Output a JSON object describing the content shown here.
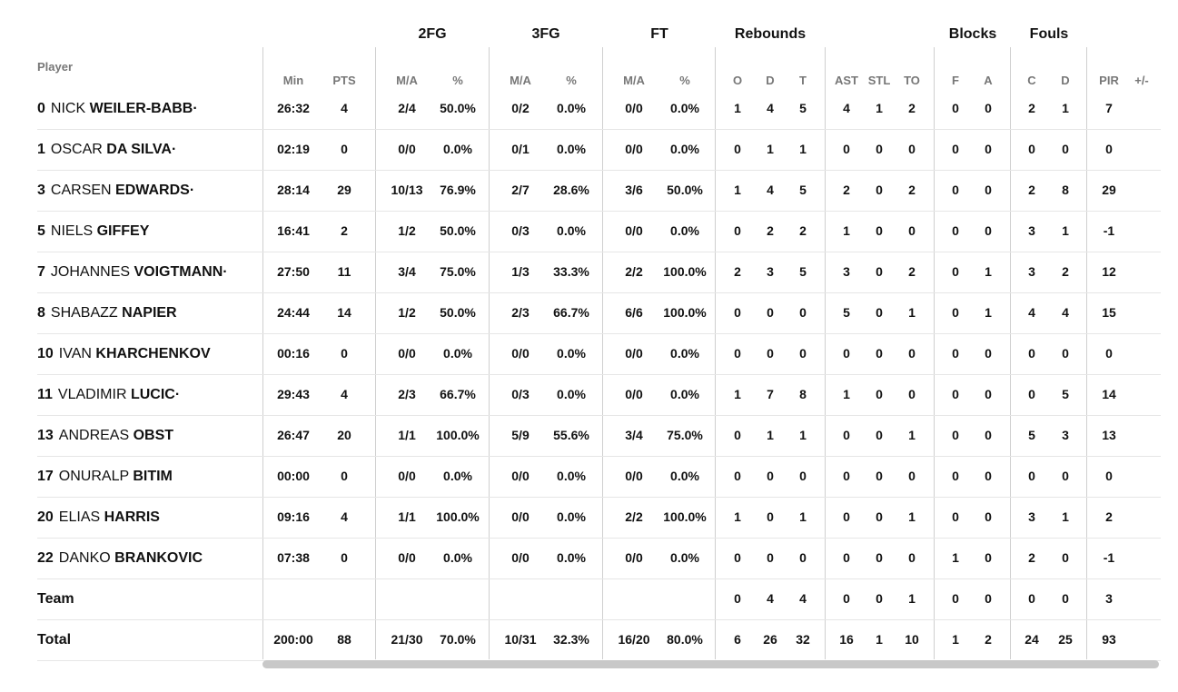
{
  "groups": [
    "2FG",
    "3FG",
    "FT",
    "Rebounds",
    "Blocks",
    "Fouls"
  ],
  "player_header": "Player",
  "columns": [
    "Min",
    "PTS",
    "M/A",
    "%",
    "M/A",
    "%",
    "M/A",
    "%",
    "O",
    "D",
    "T",
    "AST",
    "STL",
    "TO",
    "F",
    "A",
    "C",
    "D",
    "PIR",
    "+/-"
  ],
  "rows": [
    {
      "num": "0",
      "first": "NICK",
      "last": "WEILER-BABB·",
      "stats": [
        "26:32",
        "4",
        "2/4",
        "50.0%",
        "0/2",
        "0.0%",
        "0/0",
        "0.0%",
        "1",
        "4",
        "5",
        "4",
        "1",
        "2",
        "0",
        "0",
        "2",
        "1",
        "7",
        ""
      ]
    },
    {
      "num": "1",
      "first": "OSCAR",
      "last": "DA SILVA·",
      "stats": [
        "02:19",
        "0",
        "0/0",
        "0.0%",
        "0/1",
        "0.0%",
        "0/0",
        "0.0%",
        "0",
        "1",
        "1",
        "0",
        "0",
        "0",
        "0",
        "0",
        "0",
        "0",
        "0",
        ""
      ]
    },
    {
      "num": "3",
      "first": "CARSEN",
      "last": "EDWARDS·",
      "stats": [
        "28:14",
        "29",
        "10/13",
        "76.9%",
        "2/7",
        "28.6%",
        "3/6",
        "50.0%",
        "1",
        "4",
        "5",
        "2",
        "0",
        "2",
        "0",
        "0",
        "2",
        "8",
        "29",
        ""
      ]
    },
    {
      "num": "5",
      "first": "NIELS",
      "last": "GIFFEY",
      "stats": [
        "16:41",
        "2",
        "1/2",
        "50.0%",
        "0/3",
        "0.0%",
        "0/0",
        "0.0%",
        "0",
        "2",
        "2",
        "1",
        "0",
        "0",
        "0",
        "0",
        "3",
        "1",
        "-1",
        ""
      ]
    },
    {
      "num": "7",
      "first": "JOHANNES",
      "last": "VOIGTMANN·",
      "stats": [
        "27:50",
        "11",
        "3/4",
        "75.0%",
        "1/3",
        "33.3%",
        "2/2",
        "100.0%",
        "2",
        "3",
        "5",
        "3",
        "0",
        "2",
        "0",
        "1",
        "3",
        "2",
        "12",
        ""
      ]
    },
    {
      "num": "8",
      "first": "SHABAZZ",
      "last": "NAPIER",
      "stats": [
        "24:44",
        "14",
        "1/2",
        "50.0%",
        "2/3",
        "66.7%",
        "6/6",
        "100.0%",
        "0",
        "0",
        "0",
        "5",
        "0",
        "1",
        "0",
        "1",
        "4",
        "4",
        "15",
        ""
      ]
    },
    {
      "num": "10",
      "first": "IVAN",
      "last": "KHARCHENKOV",
      "stats": [
        "00:16",
        "0",
        "0/0",
        "0.0%",
        "0/0",
        "0.0%",
        "0/0",
        "0.0%",
        "0",
        "0",
        "0",
        "0",
        "0",
        "0",
        "0",
        "0",
        "0",
        "0",
        "0",
        ""
      ]
    },
    {
      "num": "11",
      "first": "VLADIMIR",
      "last": "LUCIC·",
      "stats": [
        "29:43",
        "4",
        "2/3",
        "66.7%",
        "0/3",
        "0.0%",
        "0/0",
        "0.0%",
        "1",
        "7",
        "8",
        "1",
        "0",
        "0",
        "0",
        "0",
        "0",
        "5",
        "14",
        ""
      ]
    },
    {
      "num": "13",
      "first": "ANDREAS",
      "last": "OBST",
      "stats": [
        "26:47",
        "20",
        "1/1",
        "100.0%",
        "5/9",
        "55.6%",
        "3/4",
        "75.0%",
        "0",
        "1",
        "1",
        "0",
        "0",
        "1",
        "0",
        "0",
        "5",
        "3",
        "13",
        ""
      ]
    },
    {
      "num": "17",
      "first": "ONURALP",
      "last": "BITIM",
      "stats": [
        "00:00",
        "0",
        "0/0",
        "0.0%",
        "0/0",
        "0.0%",
        "0/0",
        "0.0%",
        "0",
        "0",
        "0",
        "0",
        "0",
        "0",
        "0",
        "0",
        "0",
        "0",
        "0",
        ""
      ]
    },
    {
      "num": "20",
      "first": "ELIAS",
      "last": "HARRIS",
      "stats": [
        "09:16",
        "4",
        "1/1",
        "100.0%",
        "0/0",
        "0.0%",
        "2/2",
        "100.0%",
        "1",
        "0",
        "1",
        "0",
        "0",
        "1",
        "0",
        "0",
        "3",
        "1",
        "2",
        ""
      ]
    },
    {
      "num": "22",
      "first": "DANKO",
      "last": "BRANKOVIC",
      "stats": [
        "07:38",
        "0",
        "0/0",
        "0.0%",
        "0/0",
        "0.0%",
        "0/0",
        "0.0%",
        "0",
        "0",
        "0",
        "0",
        "0",
        "0",
        "1",
        "0",
        "2",
        "0",
        "-1",
        ""
      ]
    },
    {
      "num": "",
      "first": "",
      "last": "Team",
      "stats": [
        "",
        "",
        "",
        "",
        "",
        "",
        "",
        "",
        "0",
        "4",
        "4",
        "0",
        "0",
        "1",
        "0",
        "0",
        "0",
        "0",
        "3",
        ""
      ]
    },
    {
      "num": "",
      "first": "",
      "last": "Total",
      "stats": [
        "200:00",
        "88",
        "21/30",
        "70.0%",
        "10/31",
        "32.3%",
        "16/20",
        "80.0%",
        "6",
        "26",
        "32",
        "16",
        "1",
        "10",
        "1",
        "2",
        "24",
        "25",
        "93",
        ""
      ]
    }
  ]
}
